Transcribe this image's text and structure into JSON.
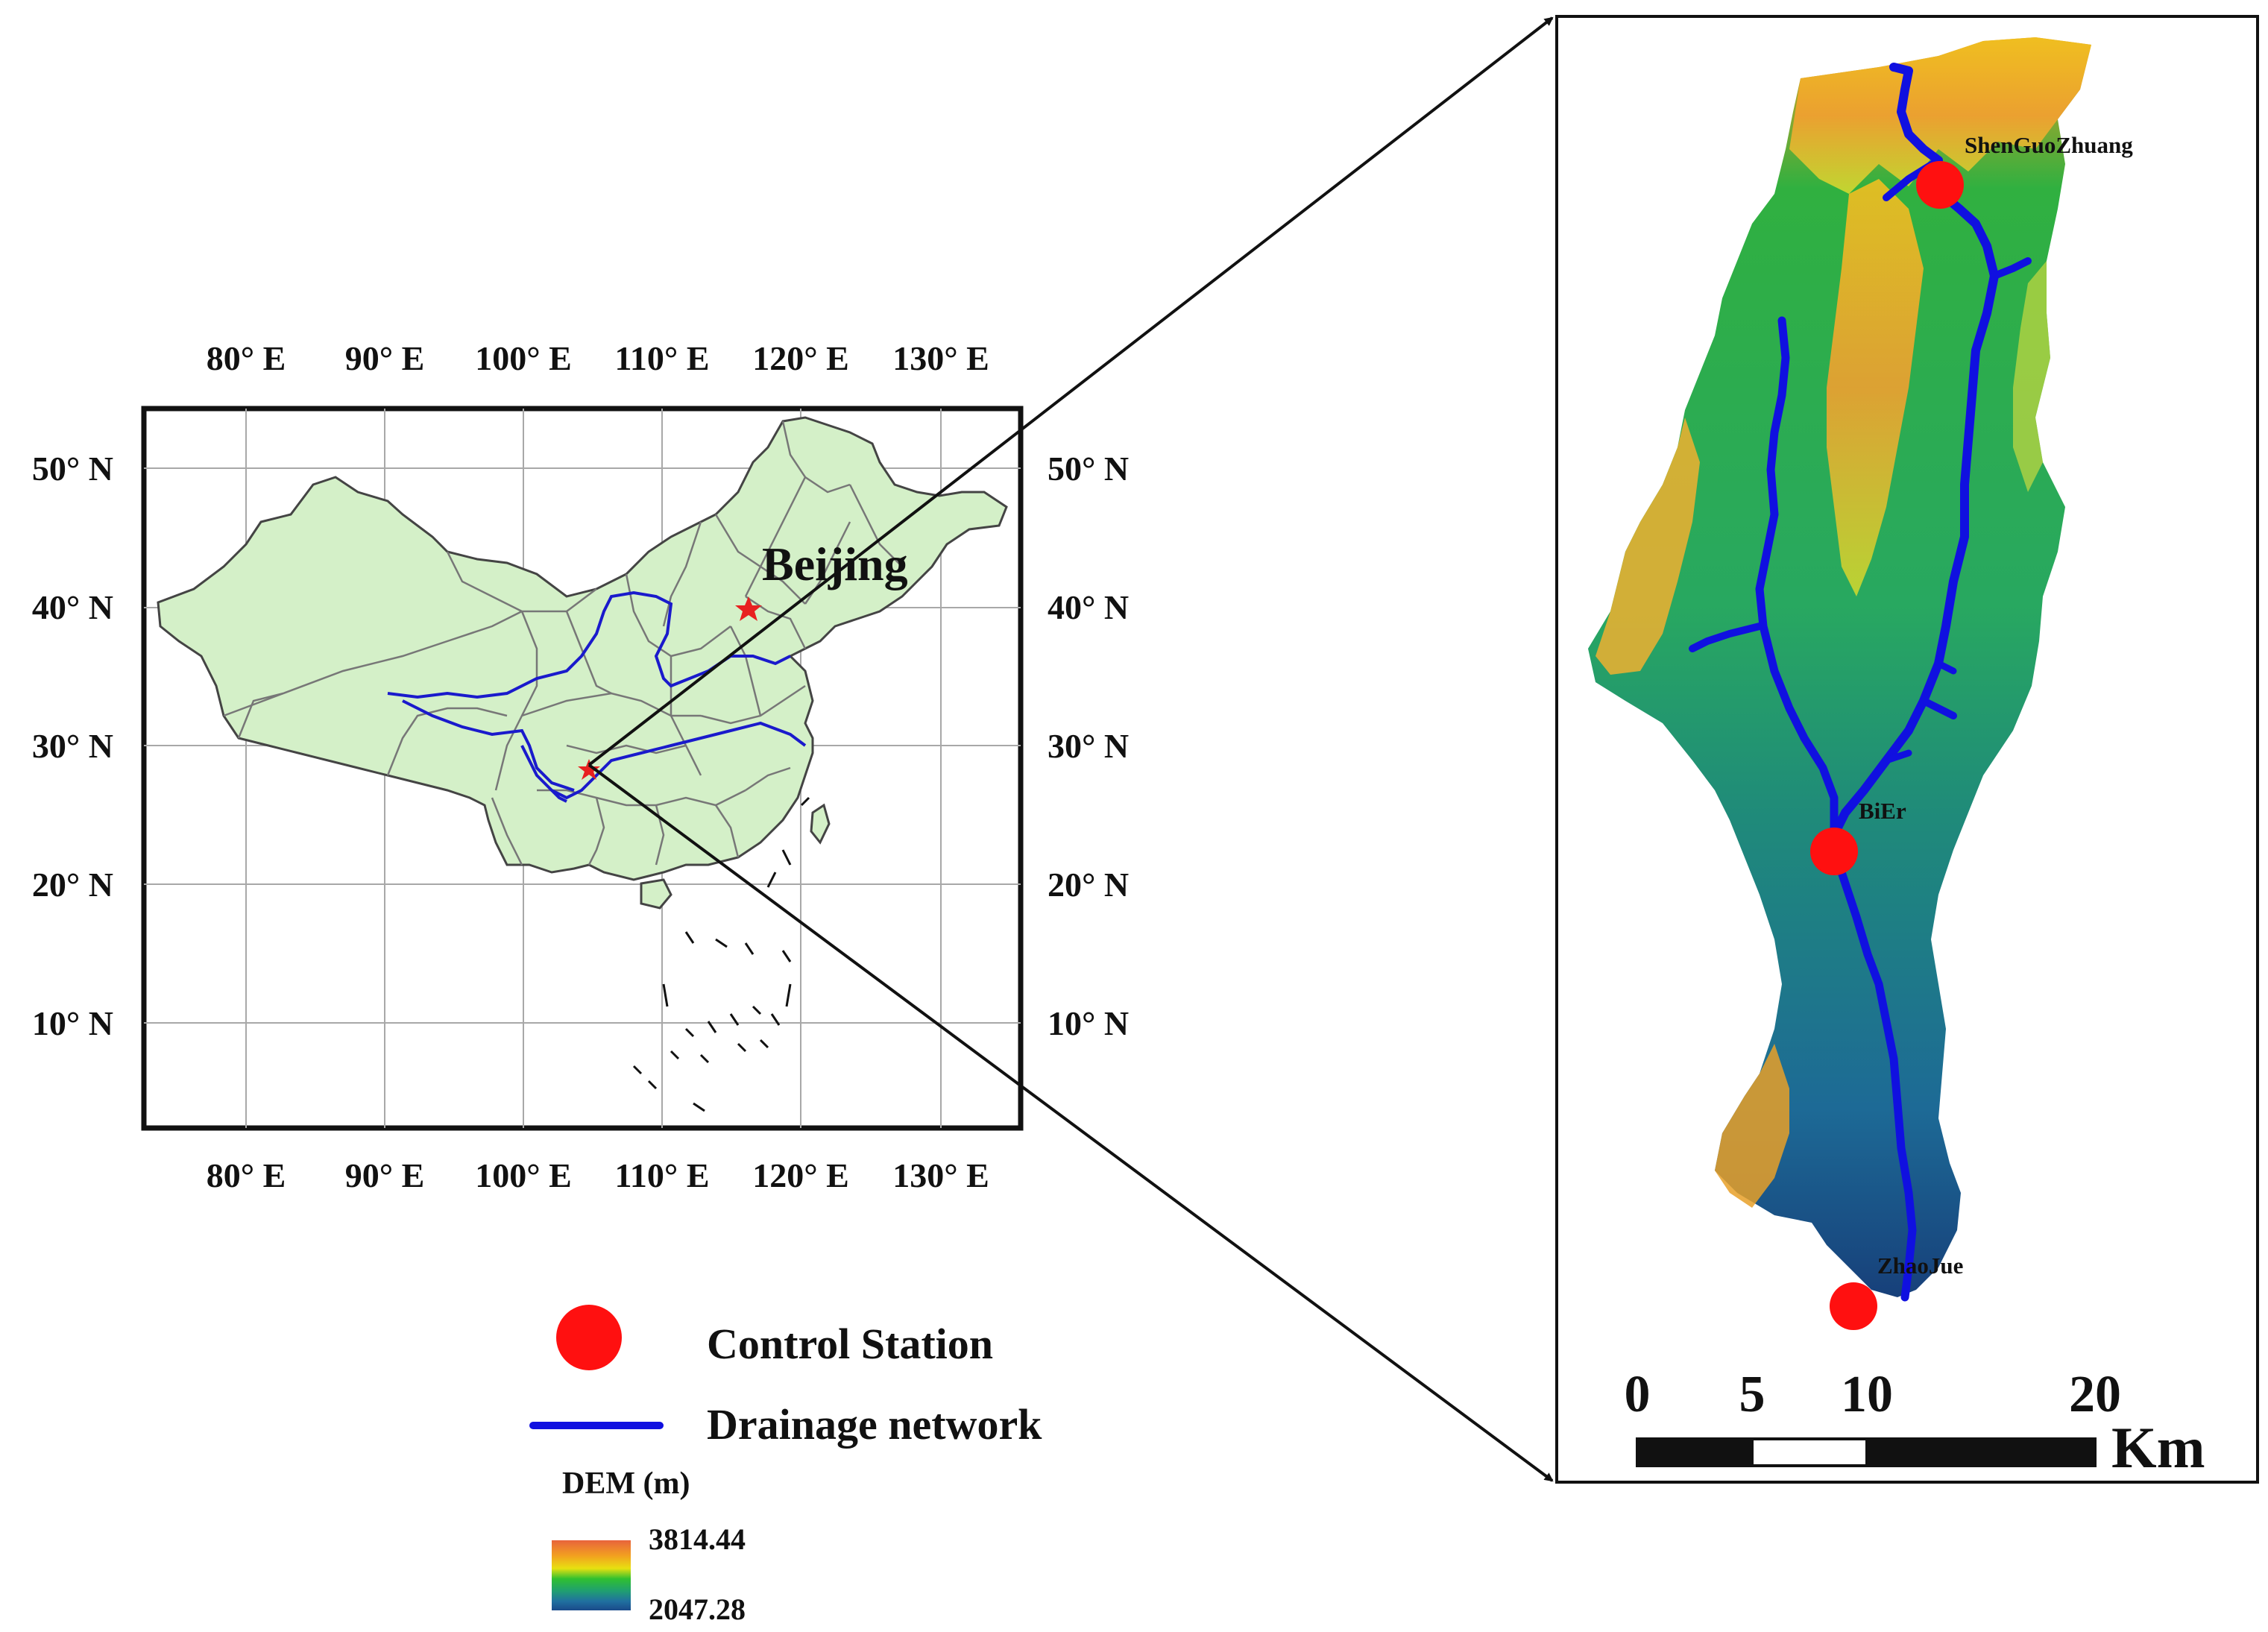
{
  "overview_map": {
    "lon_labels": [
      "80° E",
      "90° E",
      "100° E",
      "110° E",
      "120° E",
      "130° E"
    ],
    "lat_labels": [
      "50° N",
      "40° N",
      "30° N",
      "20° N",
      "10° N"
    ],
    "capital_label": "Beijing",
    "colors": {
      "land": "#d4f0c8",
      "river": "#1a1acc",
      "marker": "#e82020"
    }
  },
  "basin_map": {
    "stations": [
      {
        "name": "ShenGuoZhuang"
      },
      {
        "name": "BiEr"
      },
      {
        "name": "ZhaoJue"
      }
    ],
    "scale_bar": {
      "ticks": [
        "0",
        "5",
        "10",
        "20"
      ],
      "unit": "Km"
    },
    "colors": {
      "station": "#ff1010",
      "river": "#1010e0"
    }
  },
  "legend": {
    "control_station": "Control Station",
    "drainage_network": "Drainage network",
    "dem_title": "DEM (m)",
    "dem_max": "3814.44",
    "dem_min": "2047.28",
    "dem_colors": [
      "#e8643c",
      "#f2a020",
      "#e8e010",
      "#30c030",
      "#20a070",
      "#2070a0",
      "#1a4a8a"
    ]
  }
}
